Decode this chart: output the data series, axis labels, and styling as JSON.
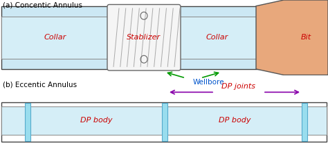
{
  "fig_width": 4.74,
  "fig_height": 2.17,
  "dpi": 100,
  "bg_color": "#ffffff",
  "panel_a_title": "(a) Concentic Annulus",
  "panel_b_title": "(b) Eccentic Annulus",
  "light_blue": "#cce8f4",
  "light_blue2": "#d5eef7",
  "cyan_joint": "#99ddee",
  "bit_color": "#e8a87c",
  "stab_fill": "#f5f5f5",
  "red_text": "#cc0000",
  "purple_arrow": "#8800aa",
  "green_arrow": "#009900",
  "blue_text": "#0055cc",
  "label_collar": "Collar",
  "label_stab": "Stablizer",
  "label_collar2": "Collar",
  "label_bit": "Bit",
  "label_wellbore": "Wellbore",
  "label_dp_joints": "DP joints",
  "label_dp_body1": "DP body",
  "label_dp_body2": "DP body"
}
